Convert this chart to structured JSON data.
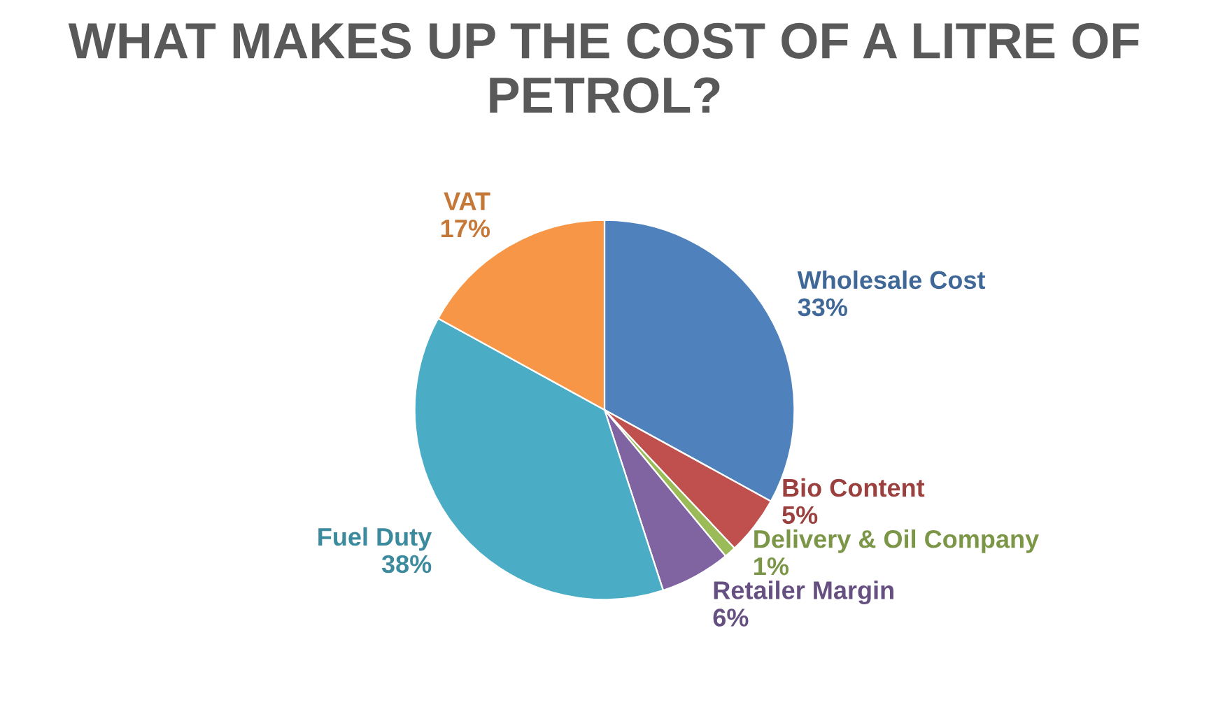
{
  "chart_data": {
    "type": "pie",
    "title": "WHAT MAKES UP THE COST OF A LITRE OF PETROL?",
    "categories": [
      "Wholesale Cost",
      "Bio Content",
      "Delivery & Oil Company",
      "Retailer Margin",
      "Fuel Duty",
      "VAT"
    ],
    "values": [
      33,
      5,
      1,
      6,
      38,
      17
    ],
    "value_labels": [
      "33%",
      "5%",
      "1%",
      "6%",
      "38%",
      "17%"
    ],
    "colors": [
      "#4f81bd",
      "#c0504d",
      "#9bbb59",
      "#8064a2",
      "#4bacc6",
      "#f79646"
    ],
    "legend": false
  }
}
